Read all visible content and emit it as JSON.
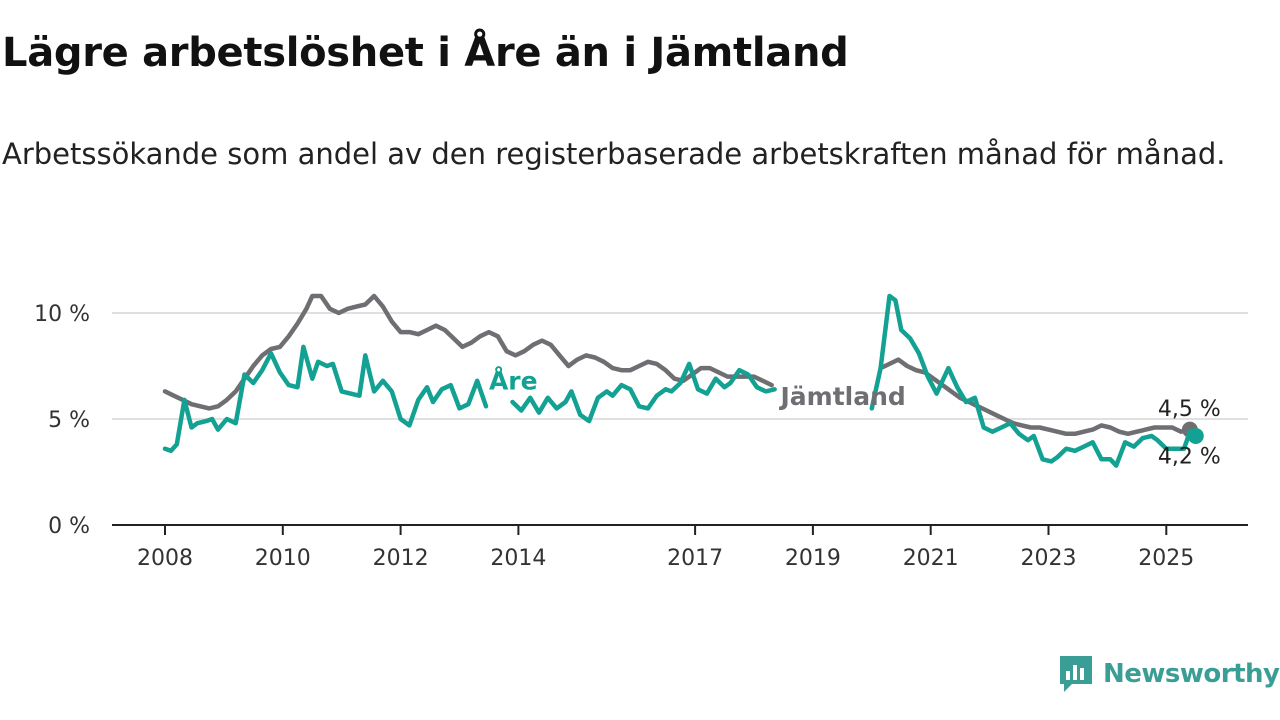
{
  "header": {
    "title": "Lägre arbetslöshet i Åre än i Jämtland",
    "subtitle": "Arbetssökande som andel av den registerbaserade arbetskraften månad för månad."
  },
  "brand": {
    "name": "Newsworthy",
    "color": "#3a9e96"
  },
  "chart_data": {
    "type": "line",
    "title": "Lägre arbetslöshet i Åre än i Jämtland",
    "subtitle": "Arbetssökande som andel av den registerbaserade arbetskraften månad för månad.",
    "xlabel": "",
    "ylabel": "",
    "ylim": [
      0,
      11
    ],
    "yticks": [
      0,
      5,
      10
    ],
    "ytick_labels": [
      "0 %",
      "5 %",
      "10 %"
    ],
    "xlim": [
      2008,
      2026.4
    ],
    "xticks": [
      2008,
      2010,
      2012,
      2014,
      2017,
      2019,
      2021,
      2023,
      2025
    ],
    "grid": true,
    "legend": "inline labels",
    "series": [
      {
        "name": "Jämtland",
        "color": "#6f6e72",
        "end_label": "4,5 %",
        "points": [
          [
            2008.0,
            6.3
          ],
          [
            2008.15,
            6.1
          ],
          [
            2008.3,
            5.9
          ],
          [
            2008.45,
            5.7
          ],
          [
            2008.6,
            5.6
          ],
          [
            2008.75,
            5.5
          ],
          [
            2008.9,
            5.6
          ],
          [
            2009.05,
            5.9
          ],
          [
            2009.2,
            6.3
          ],
          [
            2009.35,
            6.9
          ],
          [
            2009.5,
            7.5
          ],
          [
            2009.65,
            8.0
          ],
          [
            2009.8,
            8.3
          ],
          [
            2009.95,
            8.4
          ],
          [
            2010.1,
            8.9
          ],
          [
            2010.25,
            9.5
          ],
          [
            2010.4,
            10.2
          ],
          [
            2010.5,
            10.8
          ],
          [
            2010.65,
            10.8
          ],
          [
            2010.8,
            10.2
          ],
          [
            2010.95,
            10.0
          ],
          [
            2011.1,
            10.2
          ],
          [
            2011.25,
            10.3
          ],
          [
            2011.4,
            10.4
          ],
          [
            2011.55,
            10.8
          ],
          [
            2011.7,
            10.3
          ],
          [
            2011.85,
            9.6
          ],
          [
            2012.0,
            9.1
          ],
          [
            2012.15,
            9.1
          ],
          [
            2012.3,
            9.0
          ],
          [
            2012.45,
            9.2
          ],
          [
            2012.6,
            9.4
          ],
          [
            2012.75,
            9.2
          ],
          [
            2012.9,
            8.8
          ],
          [
            2013.05,
            8.4
          ],
          [
            2013.2,
            8.6
          ],
          [
            2013.35,
            8.9
          ],
          [
            2013.5,
            9.1
          ],
          [
            2013.65,
            8.9
          ],
          [
            2013.8,
            8.2
          ],
          [
            2013.95,
            8.0
          ],
          [
            2014.1,
            8.2
          ],
          [
            2014.25,
            8.5
          ],
          [
            2014.4,
            8.7
          ],
          [
            2014.55,
            8.5
          ],
          [
            2014.7,
            8.0
          ],
          [
            2014.85,
            7.5
          ],
          [
            2015.0,
            7.8
          ],
          [
            2015.15,
            8.0
          ],
          [
            2015.3,
            7.9
          ],
          [
            2015.45,
            7.7
          ],
          [
            2015.6,
            7.4
          ],
          [
            2015.75,
            7.3
          ],
          [
            2015.9,
            7.3
          ],
          [
            2016.05,
            7.5
          ],
          [
            2016.2,
            7.7
          ],
          [
            2016.35,
            7.6
          ],
          [
            2016.5,
            7.3
          ],
          [
            2016.65,
            6.9
          ],
          [
            2016.8,
            6.8
          ],
          [
            2016.95,
            7.1
          ],
          [
            2017.1,
            7.4
          ],
          [
            2017.25,
            7.4
          ],
          [
            2017.4,
            7.2
          ],
          [
            2017.55,
            7.0
          ],
          [
            2017.7,
            7.0
          ],
          [
            2017.85,
            7.0
          ],
          [
            2018.0,
            7.0
          ],
          [
            2018.15,
            6.8
          ],
          [
            2018.3,
            6.6
          ],
          [
            2020.15,
            7.4
          ],
          [
            2020.3,
            7.6
          ],
          [
            2020.45,
            7.8
          ],
          [
            2020.6,
            7.5
          ],
          [
            2020.75,
            7.3
          ],
          [
            2020.9,
            7.2
          ],
          [
            2021.05,
            6.9
          ],
          [
            2021.2,
            6.6
          ],
          [
            2021.35,
            6.3
          ],
          [
            2021.5,
            6.0
          ],
          [
            2021.65,
            5.8
          ],
          [
            2021.8,
            5.6
          ],
          [
            2021.95,
            5.4
          ],
          [
            2022.1,
            5.2
          ],
          [
            2022.25,
            5.0
          ],
          [
            2022.4,
            4.8
          ],
          [
            2022.55,
            4.7
          ],
          [
            2022.7,
            4.6
          ],
          [
            2022.85,
            4.6
          ],
          [
            2023.0,
            4.5
          ],
          [
            2023.15,
            4.4
          ],
          [
            2023.3,
            4.3
          ],
          [
            2023.45,
            4.3
          ],
          [
            2023.6,
            4.4
          ],
          [
            2023.75,
            4.5
          ],
          [
            2023.9,
            4.7
          ],
          [
            2024.05,
            4.6
          ],
          [
            2024.2,
            4.4
          ],
          [
            2024.35,
            4.3
          ],
          [
            2024.5,
            4.4
          ],
          [
            2024.65,
            4.5
          ],
          [
            2024.8,
            4.6
          ],
          [
            2024.95,
            4.6
          ],
          [
            2025.1,
            4.6
          ],
          [
            2025.25,
            4.4
          ],
          [
            2025.4,
            4.5
          ]
        ]
      },
      {
        "name": "Åre",
        "color": "#12a192",
        "end_label": "4,2 %",
        "points": [
          [
            2008.0,
            3.6
          ],
          [
            2008.1,
            3.5
          ],
          [
            2008.2,
            3.8
          ],
          [
            2008.33,
            5.9
          ],
          [
            2008.45,
            4.6
          ],
          [
            2008.55,
            4.8
          ],
          [
            2008.7,
            4.9
          ],
          [
            2008.8,
            5.0
          ],
          [
            2008.9,
            4.5
          ],
          [
            2009.05,
            5.0
          ],
          [
            2009.2,
            4.8
          ],
          [
            2009.35,
            7.1
          ],
          [
            2009.5,
            6.7
          ],
          [
            2009.65,
            7.3
          ],
          [
            2009.8,
            8.1
          ],
          [
            2009.95,
            7.2
          ],
          [
            2010.1,
            6.6
          ],
          [
            2010.25,
            6.5
          ],
          [
            2010.35,
            8.4
          ],
          [
            2010.5,
            6.9
          ],
          [
            2010.6,
            7.7
          ],
          [
            2010.75,
            7.5
          ],
          [
            2010.85,
            7.6
          ],
          [
            2011.0,
            6.3
          ],
          [
            2011.15,
            6.2
          ],
          [
            2011.3,
            6.1
          ],
          [
            2011.4,
            8.0
          ],
          [
            2011.55,
            6.3
          ],
          [
            2011.7,
            6.8
          ],
          [
            2011.85,
            6.3
          ],
          [
            2012.0,
            5.0
          ],
          [
            2012.15,
            4.7
          ],
          [
            2012.3,
            5.9
          ],
          [
            2012.45,
            6.5
          ],
          [
            2012.55,
            5.8
          ],
          [
            2012.7,
            6.4
          ],
          [
            2012.85,
            6.6
          ],
          [
            2013.0,
            5.5
          ],
          [
            2013.15,
            5.7
          ],
          [
            2013.3,
            6.8
          ],
          [
            2013.45,
            5.6
          ],
          [
            2013.9,
            5.8
          ],
          [
            2014.05,
            5.4
          ],
          [
            2014.2,
            6.0
          ],
          [
            2014.35,
            5.3
          ],
          [
            2014.5,
            6.0
          ],
          [
            2014.65,
            5.5
          ],
          [
            2014.8,
            5.8
          ],
          [
            2014.9,
            6.3
          ],
          [
            2015.05,
            5.2
          ],
          [
            2015.2,
            4.9
          ],
          [
            2015.35,
            6.0
          ],
          [
            2015.5,
            6.3
          ],
          [
            2015.6,
            6.1
          ],
          [
            2015.75,
            6.6
          ],
          [
            2015.9,
            6.4
          ],
          [
            2016.05,
            5.6
          ],
          [
            2016.2,
            5.5
          ],
          [
            2016.35,
            6.1
          ],
          [
            2016.5,
            6.4
          ],
          [
            2016.6,
            6.3
          ],
          [
            2016.75,
            6.7
          ],
          [
            2016.9,
            7.6
          ],
          [
            2017.05,
            6.4
          ],
          [
            2017.2,
            6.2
          ],
          [
            2017.35,
            6.9
          ],
          [
            2017.5,
            6.5
          ],
          [
            2017.6,
            6.7
          ],
          [
            2017.75,
            7.3
          ],
          [
            2017.9,
            7.1
          ],
          [
            2018.05,
            6.5
          ],
          [
            2018.2,
            6.3
          ],
          [
            2018.35,
            6.4
          ],
          [
            2020.0,
            5.5
          ],
          [
            2020.15,
            7.4
          ],
          [
            2020.3,
            10.8
          ],
          [
            2020.4,
            10.6
          ],
          [
            2020.5,
            9.2
          ],
          [
            2020.65,
            8.8
          ],
          [
            2020.8,
            8.1
          ],
          [
            2020.95,
            7.0
          ],
          [
            2021.1,
            6.2
          ],
          [
            2021.2,
            6.8
          ],
          [
            2021.3,
            7.4
          ],
          [
            2021.45,
            6.5
          ],
          [
            2021.6,
            5.8
          ],
          [
            2021.75,
            6.0
          ],
          [
            2021.9,
            4.6
          ],
          [
            2022.05,
            4.4
          ],
          [
            2022.2,
            4.6
          ],
          [
            2022.35,
            4.8
          ],
          [
            2022.5,
            4.3
          ],
          [
            2022.65,
            4.0
          ],
          [
            2022.75,
            4.2
          ],
          [
            2022.9,
            3.1
          ],
          [
            2023.05,
            3.0
          ],
          [
            2023.15,
            3.2
          ],
          [
            2023.3,
            3.6
          ],
          [
            2023.45,
            3.5
          ],
          [
            2023.6,
            3.7
          ],
          [
            2023.75,
            3.9
          ],
          [
            2023.9,
            3.1
          ],
          [
            2024.05,
            3.1
          ],
          [
            2024.15,
            2.8
          ],
          [
            2024.3,
            3.9
          ],
          [
            2024.45,
            3.7
          ],
          [
            2024.6,
            4.1
          ],
          [
            2024.75,
            4.2
          ],
          [
            2024.85,
            4.0
          ],
          [
            2025.0,
            3.6
          ],
          [
            2025.3,
            3.6
          ],
          [
            2025.4,
            4.4
          ],
          [
            2025.5,
            4.2
          ]
        ]
      }
    ],
    "annotations": [
      {
        "text": "Åre",
        "series": "Åre"
      },
      {
        "text": "Jämtland",
        "series": "Jämtland"
      }
    ]
  }
}
